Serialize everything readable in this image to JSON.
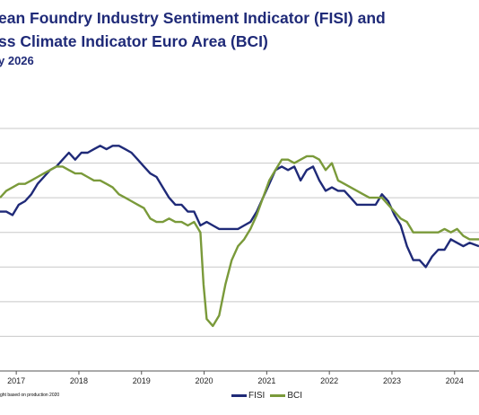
{
  "header": {
    "title_line1": "ean Foundry Industry Sentiment Indicator (FISI) and",
    "title_line2": "ss Climate Indicator Euro Area (BCI)",
    "subtitle": "y 2026"
  },
  "footnote": "ght based on production 2020",
  "colors": {
    "fisi": "#1f2a78",
    "bci": "#7a9a3a"
  },
  "chart_data": {
    "type": "line",
    "x_ticks": [
      "2017",
      "2018",
      "2019",
      "2020",
      "2021",
      "2022",
      "2023",
      "2024"
    ],
    "xlim": [
      2016.8,
      2024.45
    ],
    "ylim": [
      0,
      7
    ],
    "grid": "horizontal",
    "legend": "bottom-center",
    "series": [
      {
        "name": "FISI",
        "color": "#1f2a78",
        "points": [
          [
            2016.8,
            4.6
          ],
          [
            2016.9,
            4.6
          ],
          [
            2017.0,
            4.5
          ],
          [
            2017.1,
            4.8
          ],
          [
            2017.2,
            4.9
          ],
          [
            2017.3,
            5.1
          ],
          [
            2017.4,
            5.4
          ],
          [
            2017.5,
            5.6
          ],
          [
            2017.6,
            5.8
          ],
          [
            2017.7,
            5.9
          ],
          [
            2017.8,
            6.1
          ],
          [
            2017.9,
            6.3
          ],
          [
            2018.0,
            6.1
          ],
          [
            2018.1,
            6.3
          ],
          [
            2018.2,
            6.3
          ],
          [
            2018.3,
            6.4
          ],
          [
            2018.4,
            6.5
          ],
          [
            2018.5,
            6.4
          ],
          [
            2018.6,
            6.5
          ],
          [
            2018.7,
            6.5
          ],
          [
            2018.8,
            6.4
          ],
          [
            2018.9,
            6.3
          ],
          [
            2019.0,
            6.1
          ],
          [
            2019.1,
            5.9
          ],
          [
            2019.2,
            5.7
          ],
          [
            2019.3,
            5.6
          ],
          [
            2019.4,
            5.3
          ],
          [
            2019.5,
            5.0
          ],
          [
            2019.6,
            4.8
          ],
          [
            2019.7,
            4.8
          ],
          [
            2019.8,
            4.6
          ],
          [
            2019.9,
            4.6
          ],
          [
            2020.0,
            4.2
          ],
          [
            2020.1,
            4.3
          ],
          [
            2020.2,
            4.2
          ],
          [
            2020.3,
            4.1
          ],
          [
            2020.4,
            4.1
          ],
          [
            2020.5,
            4.1
          ],
          [
            2020.6,
            4.1
          ],
          [
            2020.7,
            4.2
          ],
          [
            2020.8,
            4.3
          ],
          [
            2020.9,
            4.6
          ],
          [
            2021.0,
            5.0
          ],
          [
            2021.1,
            5.4
          ],
          [
            2021.2,
            5.8
          ],
          [
            2021.3,
            5.9
          ],
          [
            2021.4,
            5.8
          ],
          [
            2021.5,
            5.9
          ],
          [
            2021.6,
            5.5
          ],
          [
            2021.7,
            5.8
          ],
          [
            2021.8,
            5.9
          ],
          [
            2021.9,
            5.5
          ],
          [
            2022.0,
            5.2
          ],
          [
            2022.1,
            5.3
          ],
          [
            2022.2,
            5.2
          ],
          [
            2022.3,
            5.2
          ],
          [
            2022.4,
            5.0
          ],
          [
            2022.5,
            4.8
          ],
          [
            2022.6,
            4.8
          ],
          [
            2022.7,
            4.8
          ],
          [
            2022.8,
            4.8
          ],
          [
            2022.9,
            5.1
          ],
          [
            2023.0,
            4.9
          ],
          [
            2023.1,
            4.5
          ],
          [
            2023.2,
            4.2
          ],
          [
            2023.3,
            3.6
          ],
          [
            2023.4,
            3.2
          ],
          [
            2023.5,
            3.2
          ],
          [
            2023.6,
            3.0
          ],
          [
            2023.7,
            3.3
          ],
          [
            2023.8,
            3.5
          ],
          [
            2023.9,
            3.5
          ],
          [
            2024.0,
            3.8
          ],
          [
            2024.1,
            3.7
          ],
          [
            2024.2,
            3.6
          ],
          [
            2024.3,
            3.7
          ],
          [
            2024.45,
            3.6
          ]
        ]
      },
      {
        "name": "BCI",
        "color": "#7a9a3a",
        "points": [
          [
            2016.8,
            5.0
          ],
          [
            2016.9,
            5.2
          ],
          [
            2017.0,
            5.3
          ],
          [
            2017.1,
            5.4
          ],
          [
            2017.2,
            5.4
          ],
          [
            2017.3,
            5.5
          ],
          [
            2017.4,
            5.6
          ],
          [
            2017.5,
            5.7
          ],
          [
            2017.6,
            5.8
          ],
          [
            2017.7,
            5.9
          ],
          [
            2017.8,
            5.9
          ],
          [
            2017.9,
            5.8
          ],
          [
            2018.0,
            5.7
          ],
          [
            2018.1,
            5.7
          ],
          [
            2018.2,
            5.6
          ],
          [
            2018.3,
            5.5
          ],
          [
            2018.4,
            5.5
          ],
          [
            2018.5,
            5.4
          ],
          [
            2018.6,
            5.3
          ],
          [
            2018.7,
            5.1
          ],
          [
            2018.8,
            5.0
          ],
          [
            2018.9,
            4.9
          ],
          [
            2019.0,
            4.8
          ],
          [
            2019.1,
            4.7
          ],
          [
            2019.2,
            4.4
          ],
          [
            2019.3,
            4.3
          ],
          [
            2019.4,
            4.3
          ],
          [
            2019.5,
            4.4
          ],
          [
            2019.6,
            4.3
          ],
          [
            2019.7,
            4.3
          ],
          [
            2019.8,
            4.2
          ],
          [
            2019.9,
            4.3
          ],
          [
            2020.0,
            4.0
          ],
          [
            2020.05,
            2.5
          ],
          [
            2020.1,
            1.5
          ],
          [
            2020.2,
            1.3
          ],
          [
            2020.3,
            1.6
          ],
          [
            2020.4,
            2.5
          ],
          [
            2020.5,
            3.2
          ],
          [
            2020.6,
            3.6
          ],
          [
            2020.7,
            3.8
          ],
          [
            2020.8,
            4.1
          ],
          [
            2020.9,
            4.5
          ],
          [
            2021.0,
            5.0
          ],
          [
            2021.1,
            5.5
          ],
          [
            2021.2,
            5.8
          ],
          [
            2021.3,
            6.1
          ],
          [
            2021.4,
            6.1
          ],
          [
            2021.5,
            6.0
          ],
          [
            2021.6,
            6.1
          ],
          [
            2021.7,
            6.2
          ],
          [
            2021.8,
            6.2
          ],
          [
            2021.9,
            6.1
          ],
          [
            2022.0,
            5.8
          ],
          [
            2022.1,
            6.0
          ],
          [
            2022.2,
            5.5
          ],
          [
            2022.3,
            5.4
          ],
          [
            2022.4,
            5.3
          ],
          [
            2022.5,
            5.2
          ],
          [
            2022.6,
            5.1
          ],
          [
            2022.7,
            5.0
          ],
          [
            2022.8,
            5.0
          ],
          [
            2022.9,
            5.0
          ],
          [
            2023.0,
            4.8
          ],
          [
            2023.1,
            4.6
          ],
          [
            2023.2,
            4.4
          ],
          [
            2023.3,
            4.3
          ],
          [
            2023.4,
            4.0
          ],
          [
            2023.5,
            4.0
          ],
          [
            2023.6,
            4.0
          ],
          [
            2023.7,
            4.0
          ],
          [
            2023.8,
            4.0
          ],
          [
            2023.9,
            4.1
          ],
          [
            2024.0,
            4.0
          ],
          [
            2024.1,
            4.1
          ],
          [
            2024.2,
            3.9
          ],
          [
            2024.3,
            3.8
          ],
          [
            2024.45,
            3.8
          ]
        ]
      }
    ]
  }
}
